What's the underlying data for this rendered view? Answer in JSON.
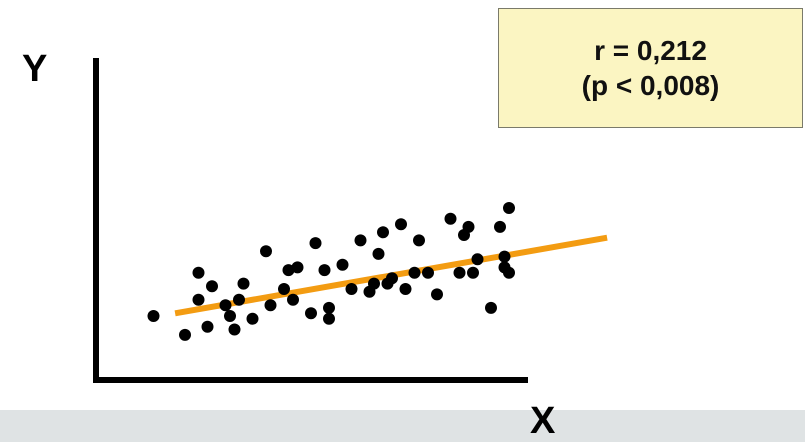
{
  "chart_data": {
    "type": "scatter",
    "title": "",
    "xlabel": "X",
    "ylabel": "Y",
    "xlim": [
      0,
      10
    ],
    "ylim": [
      0,
      10
    ],
    "grid": false,
    "legend": "none",
    "annotation": {
      "line1": "r = 0,212",
      "line2": "(p < 0,008)"
    },
    "trend_line": {
      "x": [
        0.78,
        10.38
      ],
      "y": [
        2.1,
        4.9
      ],
      "color": "#f39c12"
    },
    "series": [
      {
        "marker_color": "#000000",
        "x": [
          0.3,
          1.0,
          1.3,
          1.3,
          1.5,
          1.6,
          1.9,
          2.0,
          2.1,
          2.2,
          2.3,
          2.5,
          2.8,
          2.9,
          3.2,
          3.3,
          3.4,
          3.5,
          3.8,
          3.9,
          4.1,
          4.2,
          4.2,
          4.5,
          4.7,
          4.9,
          5.1,
          5.2,
          5.3,
          5.4,
          5.5,
          5.6,
          5.8,
          5.9,
          6.1,
          6.2,
          6.4,
          6.6,
          6.9,
          7.1,
          7.2,
          7.3,
          7.4,
          7.5,
          7.8,
          8.0,
          8.1,
          8.1,
          8.2,
          8.2
        ],
        "y": [
          2.0,
          1.3,
          3.6,
          2.6,
          1.6,
          3.1,
          2.4,
          2.0,
          1.5,
          2.6,
          3.2,
          1.9,
          4.4,
          2.4,
          3.0,
          3.7,
          2.6,
          3.8,
          2.1,
          4.7,
          3.7,
          1.9,
          2.3,
          3.9,
          3.0,
          4.8,
          2.9,
          3.2,
          4.3,
          5.1,
          3.2,
          3.4,
          5.4,
          3.0,
          3.6,
          4.8,
          3.6,
          2.8,
          5.6,
          3.6,
          5.0,
          5.3,
          3.6,
          4.1,
          2.3,
          5.3,
          4.2,
          3.8,
          3.6,
          6.0
        ]
      }
    ]
  }
}
